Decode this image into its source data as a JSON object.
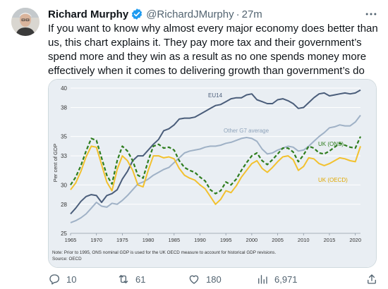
{
  "tweet": {
    "author_name": "Richard Murphy",
    "handle": "@RichardJMurphy",
    "separator": "·",
    "time": "27m",
    "text": "If you want to know why almost every major economy does better than us, this chart explains it. They pay more tax and their government’s spend more and they win as a result as no one spends money more effectively when it comes to delivering growth than government’s do",
    "icons": {
      "verified": "verified-badge-icon",
      "more": "more-options-icon"
    }
  },
  "colors": {
    "verified": "#1d9bf0",
    "muted": "#536471",
    "chart_bg": "#e9eef3",
    "eu14": "#4a5d7a",
    "other_g7": "#9fb1c6",
    "uk_ons": "#2e7d1e",
    "uk_oecd": "#f2c12e"
  },
  "actions": {
    "reply": {
      "icon": "reply-icon",
      "count": "10"
    },
    "retweet": {
      "icon": "retweet-icon",
      "count": "61"
    },
    "like": {
      "icon": "heart-icon",
      "count": "180"
    },
    "views": {
      "icon": "views-icon",
      "count": "6,971"
    },
    "share": {
      "icon": "share-icon"
    }
  },
  "chart_data": {
    "type": "line",
    "ylabel": "Per cent of GDP",
    "xlim": [
      1965,
      2021
    ],
    "ylim": [
      25,
      40
    ],
    "x_ticks": [
      1965,
      1970,
      1975,
      1980,
      1985,
      1990,
      1995,
      2000,
      2005,
      2010,
      2015,
      2020
    ],
    "y_ticks": [
      25,
      28,
      30,
      33,
      35,
      38,
      40
    ],
    "grid": "horizontal",
    "note": "Note: Prior to 1995, ONS nominal GDP is used for the UK OECD measure to account for historical GDP revisions.",
    "source": "Source: OECD",
    "x": [
      1965,
      1966,
      1967,
      1968,
      1969,
      1970,
      1971,
      1972,
      1973,
      1974,
      1975,
      1976,
      1977,
      1978,
      1979,
      1980,
      1981,
      1982,
      1983,
      1984,
      1985,
      1986,
      1987,
      1988,
      1989,
      1990,
      1991,
      1992,
      1993,
      1994,
      1995,
      1996,
      1997,
      1998,
      1999,
      2000,
      2001,
      2002,
      2003,
      2004,
      2005,
      2006,
      2007,
      2008,
      2009,
      2010,
      2011,
      2012,
      2013,
      2014,
      2015,
      2016,
      2017,
      2018,
      2019,
      2020,
      2021
    ],
    "series": [
      {
        "name": "EU14",
        "style": "solid",
        "values": [
          27.0,
          27.6,
          28.3,
          28.8,
          29.0,
          28.9,
          28.2,
          28.9,
          29.1,
          29.5,
          30.6,
          31.4,
          32.5,
          33.0,
          33.0,
          33.6,
          34.2,
          34.7,
          35.6,
          35.8,
          36.2,
          36.8,
          36.9,
          36.9,
          37.0,
          37.3,
          37.6,
          37.9,
          38.2,
          38.3,
          38.6,
          38.9,
          39.0,
          39.0,
          39.3,
          39.4,
          38.8,
          38.6,
          38.4,
          38.4,
          38.8,
          38.9,
          38.7,
          38.4,
          37.9,
          38.0,
          38.5,
          39.0,
          39.4,
          39.5,
          39.2,
          39.3,
          39.4,
          39.5,
          39.4,
          39.5,
          39.8
        ]
      },
      {
        "name": "Other G7 average",
        "style": "solid",
        "values": [
          26.1,
          26.3,
          26.6,
          27.0,
          27.6,
          28.2,
          27.8,
          27.7,
          28.1,
          28.0,
          28.4,
          28.9,
          29.5,
          30.1,
          30.3,
          30.6,
          31.0,
          31.3,
          31.6,
          31.8,
          32.3,
          32.8,
          33.3,
          33.5,
          33.6,
          33.7,
          33.9,
          34.0,
          34.0,
          34.1,
          34.3,
          34.4,
          34.6,
          34.8,
          34.9,
          34.8,
          34.5,
          33.7,
          33.2,
          33.3,
          33.6,
          33.8,
          34.0,
          33.9,
          33.5,
          33.6,
          34.0,
          34.5,
          35.0,
          35.4,
          35.9,
          36.0,
          36.2,
          36.1,
          36.1,
          36.5,
          37.2
        ]
      },
      {
        "name": "UK (ONS)",
        "style": "dashed",
        "values": [
          30.0,
          30.8,
          32.0,
          33.5,
          34.8,
          34.6,
          32.8,
          31.0,
          30.1,
          32.5,
          34.0,
          33.5,
          32.5,
          31.0,
          30.7,
          32.5,
          34.0,
          34.2,
          33.8,
          33.9,
          33.6,
          32.5,
          31.8,
          31.5,
          31.3,
          30.8,
          30.4,
          29.5,
          29.1,
          29.4,
          30.3,
          30.0,
          30.6,
          31.5,
          32.3,
          33.0,
          33.3,
          32.5,
          32.1,
          32.6,
          33.2,
          33.8,
          33.8,
          33.4,
          32.4,
          33.1,
          34.0,
          33.8,
          33.3,
          33.2,
          33.5,
          33.9,
          34.3,
          34.1,
          33.9,
          33.8,
          35.0
        ]
      },
      {
        "name": "UK (OECD)",
        "style": "solid",
        "values": [
          29.5,
          30.2,
          31.4,
          32.9,
          34.0,
          33.9,
          32.1,
          30.3,
          29.4,
          31.6,
          33.0,
          32.5,
          31.5,
          30.0,
          29.8,
          31.5,
          33.0,
          33.0,
          32.8,
          32.9,
          32.7,
          31.7,
          31.0,
          30.7,
          30.5,
          30.0,
          29.6,
          28.8,
          28.0,
          28.5,
          29.4,
          29.2,
          29.9,
          30.8,
          31.5,
          32.2,
          32.5,
          31.7,
          31.3,
          31.8,
          32.4,
          32.9,
          33.0,
          32.6,
          31.5,
          31.9,
          32.8,
          32.7,
          32.2,
          32.0,
          32.2,
          32.5,
          32.8,
          32.7,
          32.5,
          32.4,
          34.0
        ]
      }
    ]
  }
}
